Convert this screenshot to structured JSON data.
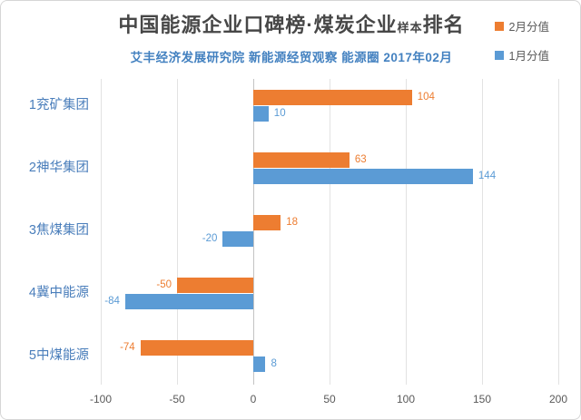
{
  "header": {
    "title_main": "中国能源企业口碑榜·煤炭企业",
    "title_small": "样本",
    "title_suffix": "排名",
    "subtitle": "艾丰经济发展研究院 新能源经贸观察 能源圈 2017年02月"
  },
  "colors": {
    "title": "#474747",
    "subtitle": "#4381C0",
    "category_label": "#4A7EBB",
    "tick_label": "#595959",
    "gridline": "#e2e2e2",
    "zero_axis": "#c3c3c3",
    "series_feb": "#ED7D31",
    "series_jan": "#5B9BD5"
  },
  "chart_data": {
    "type": "bar",
    "orientation": "horizontal",
    "title": "中国能源企业口碑榜·煤炭企业样本排名",
    "subtitle": "艾丰经济发展研究院 新能源经贸观察 能源圈 2017年02月",
    "categories": [
      "1兖矿集团",
      "2神华集团",
      "3焦煤集团",
      "4冀中能源",
      "5中煤能源"
    ],
    "series": [
      {
        "name": "2月分值",
        "color": "#ED7D31",
        "values": [
          104,
          63,
          18,
          -50,
          -74
        ]
      },
      {
        "name": "1月分值",
        "color": "#5B9BD5",
        "values": [
          10,
          144,
          -20,
          -84,
          8
        ]
      }
    ],
    "x_ticks": [
      -100,
      -50,
      0,
      50,
      100,
      150,
      200
    ],
    "xlim": [
      -104,
      205
    ],
    "grid": true,
    "data_labels": true,
    "legend_position": "top-right"
  }
}
